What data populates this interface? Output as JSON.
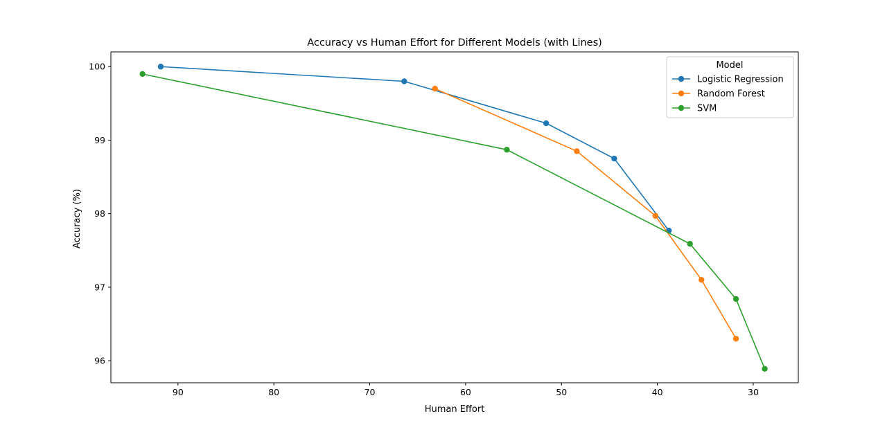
{
  "chart_data": {
    "type": "line",
    "title": "Accuracy vs Human Effort for Different Models (with Lines)",
    "xlabel": "Human Effort",
    "ylabel": "Accuracy (%)",
    "xlim": [
      97,
      25.3
    ],
    "ylim": [
      95.7,
      100.2
    ],
    "x_inverted": true,
    "x_ticks": [
      90,
      80,
      70,
      60,
      50,
      40,
      30
    ],
    "y_ticks": [
      96,
      97,
      98,
      99,
      100
    ],
    "grid": false,
    "legend": {
      "title": "Model",
      "placement": "top-right"
    },
    "series": [
      {
        "name": "Logistic Regression",
        "color": "#1f77b4",
        "marker": "circle",
        "x": [
          91.8,
          66.4,
          51.6,
          44.5,
          38.8
        ],
        "y": [
          100.0,
          99.8,
          99.23,
          98.75,
          97.77
        ]
      },
      {
        "name": "Random Forest",
        "color": "#ff7f0e",
        "marker": "circle",
        "x": [
          63.2,
          48.4,
          40.2,
          35.4,
          31.8
        ],
        "y": [
          99.7,
          98.85,
          97.97,
          97.1,
          96.3
        ]
      },
      {
        "name": "SVM",
        "color": "#2ca02c",
        "marker": "circle",
        "x": [
          93.7,
          55.7,
          36.6,
          31.8,
          28.8
        ],
        "y": [
          99.9,
          98.87,
          97.59,
          96.84,
          95.89
        ]
      }
    ]
  }
}
